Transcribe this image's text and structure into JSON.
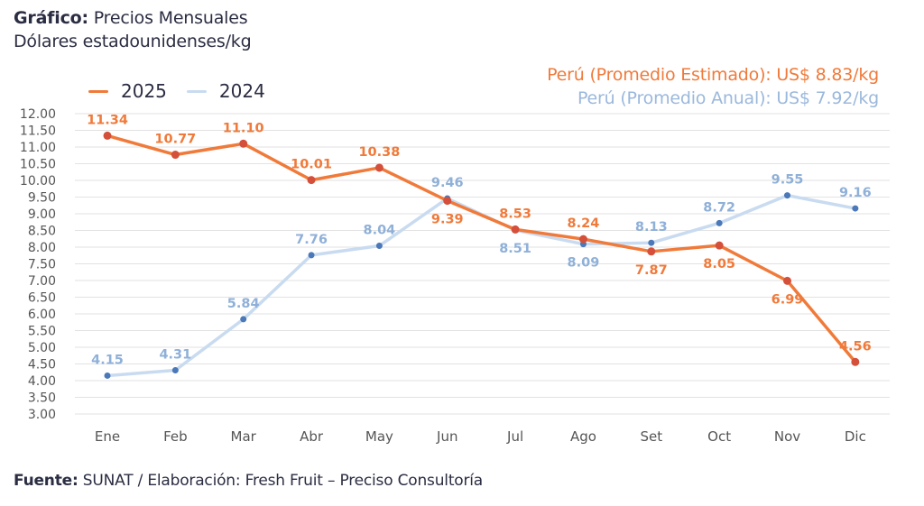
{
  "header": {
    "title_bold": "Gráfico:",
    "title_rest": " Precios Mensuales",
    "subtitle": "Dólares estadounidenses/kg"
  },
  "averages": {
    "estimated": "Perú (Promedio Estimado): US$ 8.83/kg",
    "annual": "Perú (Promedio Anual): US$ 7.92/kg"
  },
  "footer": {
    "bold": "Fuente:",
    "rest": " SUNAT / Elaboración: Fresh Fruit – Preciso Consultoría"
  },
  "colors": {
    "series_2025_line": "#f07a3a",
    "series_2025_marker": "#d4503a",
    "series_2025_label": "#f07a3a",
    "series_2024_line": "#c9dbf0",
    "series_2024_marker": "#4a78b8",
    "series_2024_label": "#8fb0d8",
    "grid": "#e2e2e2"
  },
  "chart_data": {
    "type": "line",
    "title": "Precios Mensuales",
    "ylabel": "Dólares estadounidenses/kg",
    "xlabel": "",
    "categories": [
      "Ene",
      "Feb",
      "Mar",
      "Abr",
      "May",
      "Jun",
      "Jul",
      "Ago",
      "Set",
      "Oct",
      "Nov",
      "Dic"
    ],
    "ylim": [
      3.0,
      12.0
    ],
    "yticks": [
      "12.00",
      "11.50",
      "11.00",
      "10.50",
      "10.00",
      "9.50",
      "9.00",
      "8.50",
      "8.00",
      "7.50",
      "7.00",
      "6.50",
      "6.00",
      "5.50",
      "5.00",
      "4.50",
      "4.00",
      "3.50",
      "3.00"
    ],
    "ytick_values": [
      12.0,
      11.5,
      11.0,
      10.5,
      10.0,
      9.5,
      9.0,
      8.5,
      8.0,
      7.5,
      7.0,
      6.5,
      6.0,
      5.5,
      5.0,
      4.5,
      4.0,
      3.5,
      3.0
    ],
    "grid": true,
    "legend_position": "top-left",
    "series": [
      {
        "name": "2025",
        "values": [
          11.34,
          10.77,
          11.1,
          10.01,
          10.38,
          9.39,
          8.53,
          8.24,
          7.87,
          8.05,
          6.99,
          4.56
        ],
        "labels": [
          "11.34",
          "10.77",
          "11.10",
          "10.01",
          "10.38",
          "9.39",
          "8.53",
          "8.24",
          "7.87",
          "8.05",
          "6.99",
          "4.56"
        ],
        "label_side": [
          "above",
          "above",
          "above",
          "above",
          "above",
          "below",
          "above",
          "above",
          "below",
          "below",
          "below",
          "above"
        ]
      },
      {
        "name": "2024",
        "values": [
          4.15,
          4.31,
          5.84,
          7.76,
          8.04,
          9.46,
          8.51,
          8.09,
          8.13,
          8.72,
          9.55,
          9.16
        ],
        "labels": [
          "4.15",
          "4.31",
          "5.84",
          "7.76",
          "8.04",
          "9.46",
          "8.51",
          "8.09",
          "8.13",
          "8.72",
          "9.55",
          "9.16"
        ],
        "label_side": [
          "above",
          "above",
          "above",
          "above",
          "above",
          "above",
          "below",
          "below",
          "above",
          "above",
          "above",
          "above"
        ]
      }
    ]
  }
}
